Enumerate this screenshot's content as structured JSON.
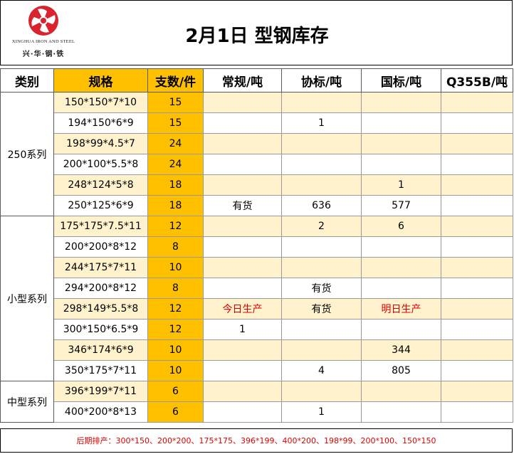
{
  "header": {
    "title": "2月1日 型钢库存",
    "logo_en": "XINGHUA IRON AND STEEL",
    "logo_cn": "兴·华·钢·铁",
    "brand_color": "#d9232e"
  },
  "columns": [
    "类别",
    "规格",
    "支数/件",
    "常规/吨",
    "协标/吨",
    "国标/吨",
    "Q355B/吨"
  ],
  "groups": [
    {
      "name": "250系列",
      "rows": [
        {
          "spec": "150*150*7*10",
          "qty": "15",
          "cg": "",
          "xb": "",
          "gb": "",
          "q355": ""
        },
        {
          "spec": "194*150*6*9",
          "qty": "15",
          "cg": "",
          "xb": "1",
          "gb": "",
          "q355": ""
        },
        {
          "spec": "198*99*4.5*7",
          "qty": "24",
          "cg": "",
          "xb": "",
          "gb": "",
          "q355": ""
        },
        {
          "spec": "200*100*5.5*8",
          "qty": "24",
          "cg": "",
          "xb": "",
          "gb": "",
          "q355": ""
        },
        {
          "spec": "248*124*5*8",
          "qty": "18",
          "cg": "",
          "xb": "",
          "gb": "1",
          "q355": ""
        },
        {
          "spec": "250*125*6*9",
          "qty": "18",
          "cg": "有货",
          "xb": "636",
          "gb": "577",
          "q355": ""
        }
      ]
    },
    {
      "name": "小型系列",
      "rows": [
        {
          "spec": "175*175*7.5*11",
          "qty": "12",
          "cg": "",
          "xb": "2",
          "gb": "6",
          "q355": ""
        },
        {
          "spec": "200*200*8*12",
          "qty": "8",
          "cg": "",
          "xb": "",
          "gb": "",
          "q355": ""
        },
        {
          "spec": "244*175*7*11",
          "qty": "10",
          "cg": "",
          "xb": "",
          "gb": "",
          "q355": ""
        },
        {
          "spec": "294*200*8*12",
          "qty": "8",
          "cg": "",
          "xb": "有货",
          "gb": "",
          "q355": ""
        },
        {
          "spec": "298*149*5.5*8",
          "qty": "12",
          "cg": "今日生产",
          "xb": "有货",
          "gb": "明日生产",
          "q355": ""
        },
        {
          "spec": "300*150*6.5*9",
          "qty": "12",
          "cg": "1",
          "xb": "",
          "gb": "",
          "q355": ""
        },
        {
          "spec": "346*174*6*9",
          "qty": "10",
          "cg": "",
          "xb": "",
          "gb": "344",
          "q355": ""
        },
        {
          "spec": "350*175*7*11",
          "qty": "10",
          "cg": "",
          "xb": "4",
          "gb": "805",
          "q355": ""
        }
      ]
    },
    {
      "name": "中型系列",
      "rows": [
        {
          "spec": "396*199*7*11",
          "qty": "6",
          "cg": "",
          "xb": "",
          "gb": "",
          "q355": ""
        },
        {
          "spec": "400*200*8*13",
          "qty": "6",
          "cg": "",
          "xb": "1",
          "gb": "",
          "q355": ""
        }
      ]
    }
  ],
  "red_values": [
    "今日生产",
    "明日生产"
  ],
  "footer": {
    "text": "后期排产：300*150、200*200、175*175、396*199、400*200、198*99、200*100、150*150"
  },
  "colors": {
    "orange": "#ffc000",
    "light": "#fff2cc",
    "red": "#e00000"
  }
}
